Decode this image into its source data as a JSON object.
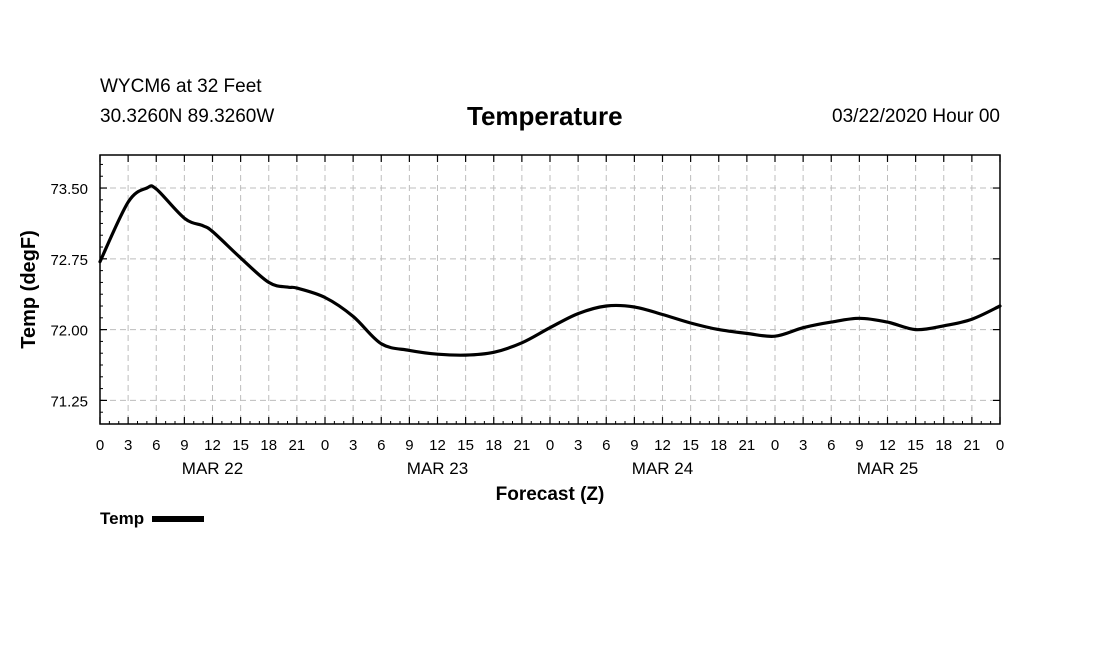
{
  "header": {
    "station": "WYCM6 at 32 Feet",
    "coords": "30.3260N 89.3260W",
    "title": "Temperature",
    "datetime": "03/22/2020 Hour 00"
  },
  "chart_data": {
    "type": "line",
    "title": "Temperature",
    "xlabel": "Forecast (Z)",
    "ylabel": "Temp (degF)",
    "xlim": [
      0,
      96
    ],
    "ylim": [
      71.0,
      73.85
    ],
    "yticks": [
      71.25,
      72.0,
      72.75,
      73.5
    ],
    "ytick_labels": [
      "71.25",
      "72.00",
      "72.75",
      "73.50"
    ],
    "xticks_hours": [
      0,
      3,
      6,
      9,
      12,
      15,
      18,
      21,
      24,
      27,
      30,
      33,
      36,
      39,
      42,
      45,
      48,
      51,
      54,
      57,
      60,
      63,
      66,
      69,
      72,
      75,
      78,
      81,
      84,
      87,
      90,
      93,
      96
    ],
    "xtick_labels": [
      "0",
      "3",
      "6",
      "9",
      "12",
      "15",
      "18",
      "21",
      "0",
      "3",
      "6",
      "9",
      "12",
      "15",
      "18",
      "21",
      "0",
      "3",
      "6",
      "9",
      "12",
      "15",
      "18",
      "21",
      "0",
      "3",
      "6",
      "9",
      "12",
      "15",
      "18",
      "21",
      "0"
    ],
    "day_labels": [
      {
        "hour": 12,
        "text": "MAR 22"
      },
      {
        "hour": 36,
        "text": "MAR 23"
      },
      {
        "hour": 60,
        "text": "MAR 24"
      },
      {
        "hour": 84,
        "text": "MAR 25"
      }
    ],
    "grid": true,
    "legend_position": "bottom-left",
    "series": [
      {
        "name": "Temp",
        "color": "#000000",
        "x": [
          0,
          3,
          5,
          6,
          9,
          11,
          12,
          15,
          18,
          20,
          21,
          24,
          27,
          30,
          33,
          36,
          39,
          42,
          45,
          48,
          51,
          54,
          57,
          60,
          63,
          66,
          69,
          72,
          75,
          78,
          81,
          84,
          87,
          90,
          93,
          96
        ],
        "y": [
          72.72,
          73.35,
          73.5,
          73.49,
          73.18,
          73.1,
          73.04,
          72.76,
          72.5,
          72.45,
          72.44,
          72.34,
          72.14,
          71.85,
          71.78,
          71.74,
          71.73,
          71.76,
          71.86,
          72.02,
          72.17,
          72.25,
          72.24,
          72.16,
          72.07,
          72.0,
          71.96,
          71.93,
          72.02,
          72.08,
          72.12,
          72.08,
          72.0,
          72.04,
          72.11,
          72.25
        ]
      }
    ]
  }
}
